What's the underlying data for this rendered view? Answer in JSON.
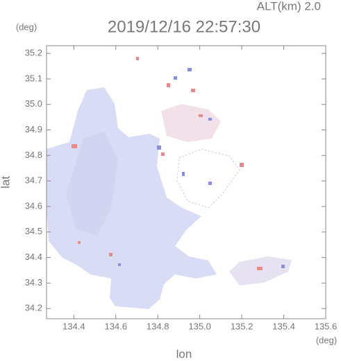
{
  "chart_data": {
    "type": "map",
    "title": "2019/12/16 22:57:30",
    "subtitle": "ALT(km) 2.0",
    "x_label": "lon",
    "y_label": "lat",
    "x_unit": "(deg)",
    "y_unit": "(deg)",
    "xlim": [
      134.27,
      135.6
    ],
    "ylim": [
      34.16,
      35.23
    ],
    "xticks": [
      134.4,
      134.6,
      134.8,
      {
        "value": 135,
        "label": "135.0"
      },
      135.2,
      135.4,
      135.6
    ],
    "yticks": [
      34.2,
      34.3,
      34.4,
      34.5,
      34.6,
      34.7,
      34.8,
      34.9,
      {
        "value": 35,
        "label": "35.0"
      },
      35.1,
      35.2
    ]
  }
}
